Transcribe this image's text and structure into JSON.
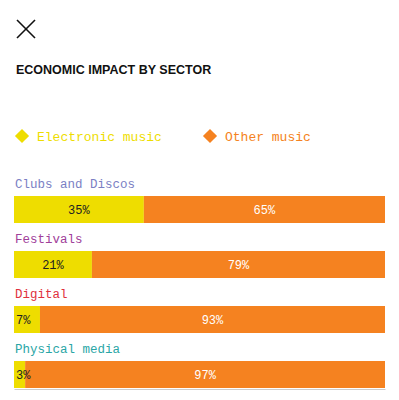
{
  "chart_data": {
    "type": "bar",
    "orientation": "horizontal",
    "stacked": true,
    "data_labels": true,
    "tick_labels": "y",
    "title": "ECONOMIC IMPACT BY SECTOR",
    "categories": [
      "Clubs and Discos",
      "Festivals",
      "Digital",
      "Physical media"
    ],
    "xlim": [
      0,
      100
    ],
    "legend": "top",
    "series": [
      {
        "name": "Electronic music",
        "color": "#eedd00",
        "values": [
          35,
          21,
          7,
          3
        ],
        "value_labels": [
          "35%",
          "21%",
          "7%",
          "3%"
        ]
      },
      {
        "name": "Other music",
        "color": "#f58220",
        "values": [
          65,
          79,
          93,
          97
        ],
        "value_labels": [
          "65%",
          "79%",
          "93%",
          "97%"
        ]
      }
    ]
  }
}
